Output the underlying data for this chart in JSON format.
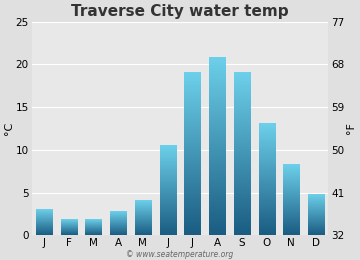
{
  "title": "Traverse City water temp",
  "months": [
    "J",
    "F",
    "M",
    "A",
    "M",
    "J",
    "J",
    "A",
    "S",
    "O",
    "N",
    "D"
  ],
  "values_c": [
    3.0,
    1.8,
    1.8,
    2.8,
    4.0,
    10.5,
    19.0,
    20.8,
    19.0,
    13.0,
    8.3,
    4.8
  ],
  "ylim_c": [
    0,
    25
  ],
  "yticks_c": [
    0,
    5,
    10,
    15,
    20,
    25
  ],
  "yticks_f": [
    32,
    41,
    50,
    59,
    68,
    77
  ],
  "ylabel_left": "°C",
  "ylabel_right": "°F",
  "bar_color_top": "#6dd0ea",
  "bar_color_bottom": "#1a5c82",
  "background_color": "#e0e0e0",
  "plot_bg_color": "#e8e8e8",
  "grid_color": "#ffffff",
  "title_fontsize": 11,
  "axis_fontsize": 8,
  "tick_fontsize": 7.5,
  "watermark": "© www.seatemperature.org",
  "bar_width": 0.65
}
